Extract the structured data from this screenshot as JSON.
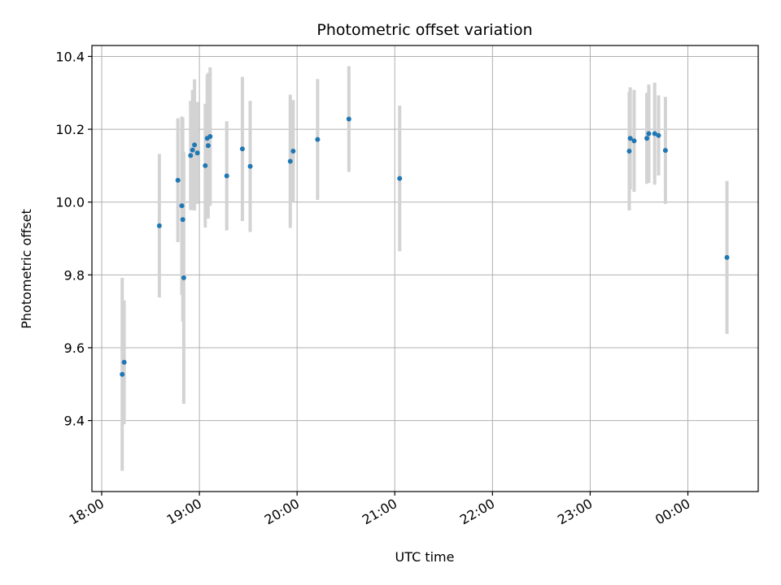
{
  "chart_data": {
    "type": "scatter",
    "title": "Photometric offset variation",
    "xlabel": "UTC time",
    "ylabel": "Photometric offset",
    "grid": true,
    "x_ticks": [
      {
        "label": "18:00",
        "hours": 18
      },
      {
        "label": "19:00",
        "hours": 19
      },
      {
        "label": "20:00",
        "hours": 20
      },
      {
        "label": "21:00",
        "hours": 21
      },
      {
        "label": "22:00",
        "hours": 22
      },
      {
        "label": "23:00",
        "hours": 23
      },
      {
        "label": "00:00",
        "hours": 24
      }
    ],
    "xlim_hours": [
      17.9,
      24.72
    ],
    "y_ticks": [
      9.4,
      9.6,
      9.8,
      10.0,
      10.2,
      10.4
    ],
    "ylim": [
      9.205,
      10.43
    ],
    "colors": {
      "point": "#1f77b4",
      "errorbar": "#d3d3d3",
      "grid": "#b0b0b0"
    },
    "points": [
      {
        "x": 18.21,
        "y": 9.527,
        "err": 0.265
      },
      {
        "x": 18.23,
        "y": 9.56,
        "err": 0.17
      },
      {
        "x": 18.59,
        "y": 9.935,
        "err": 0.197
      },
      {
        "x": 18.78,
        "y": 10.06,
        "err": 0.17
      },
      {
        "x": 18.82,
        "y": 9.99,
        "err": 0.245
      },
      {
        "x": 18.83,
        "y": 9.952,
        "err": 0.28
      },
      {
        "x": 18.84,
        "y": 9.792,
        "err": 0.346
      },
      {
        "x": 18.91,
        "y": 10.128,
        "err": 0.15
      },
      {
        "x": 18.93,
        "y": 10.143,
        "err": 0.165
      },
      {
        "x": 18.95,
        "y": 10.157,
        "err": 0.18
      },
      {
        "x": 18.98,
        "y": 10.135,
        "err": 0.14
      },
      {
        "x": 19.06,
        "y": 10.1,
        "err": 0.17
      },
      {
        "x": 19.08,
        "y": 10.175,
        "err": 0.175
      },
      {
        "x": 19.09,
        "y": 10.155,
        "err": 0.2
      },
      {
        "x": 19.11,
        "y": 10.18,
        "err": 0.19
      },
      {
        "x": 19.28,
        "y": 10.072,
        "err": 0.15
      },
      {
        "x": 19.44,
        "y": 10.146,
        "err": 0.198
      },
      {
        "x": 19.52,
        "y": 10.098,
        "err": 0.18
      },
      {
        "x": 19.93,
        "y": 10.112,
        "err": 0.183
      },
      {
        "x": 19.96,
        "y": 10.14,
        "err": 0.14
      },
      {
        "x": 20.21,
        "y": 10.172,
        "err": 0.166
      },
      {
        "x": 20.53,
        "y": 10.228,
        "err": 0.145
      },
      {
        "x": 21.05,
        "y": 10.065,
        "err": 0.2
      },
      {
        "x": 23.4,
        "y": 10.14,
        "err": 0.163
      },
      {
        "x": 23.41,
        "y": 10.175,
        "err": 0.14
      },
      {
        "x": 23.45,
        "y": 10.168,
        "err": 0.14
      },
      {
        "x": 23.58,
        "y": 10.175,
        "err": 0.125
      },
      {
        "x": 23.6,
        "y": 10.188,
        "err": 0.135
      },
      {
        "x": 23.66,
        "y": 10.188,
        "err": 0.14
      },
      {
        "x": 23.7,
        "y": 10.183,
        "err": 0.11
      },
      {
        "x": 23.77,
        "y": 10.142,
        "err": 0.147
      },
      {
        "x": 24.4,
        "y": 9.848,
        "err": 0.21
      }
    ]
  }
}
